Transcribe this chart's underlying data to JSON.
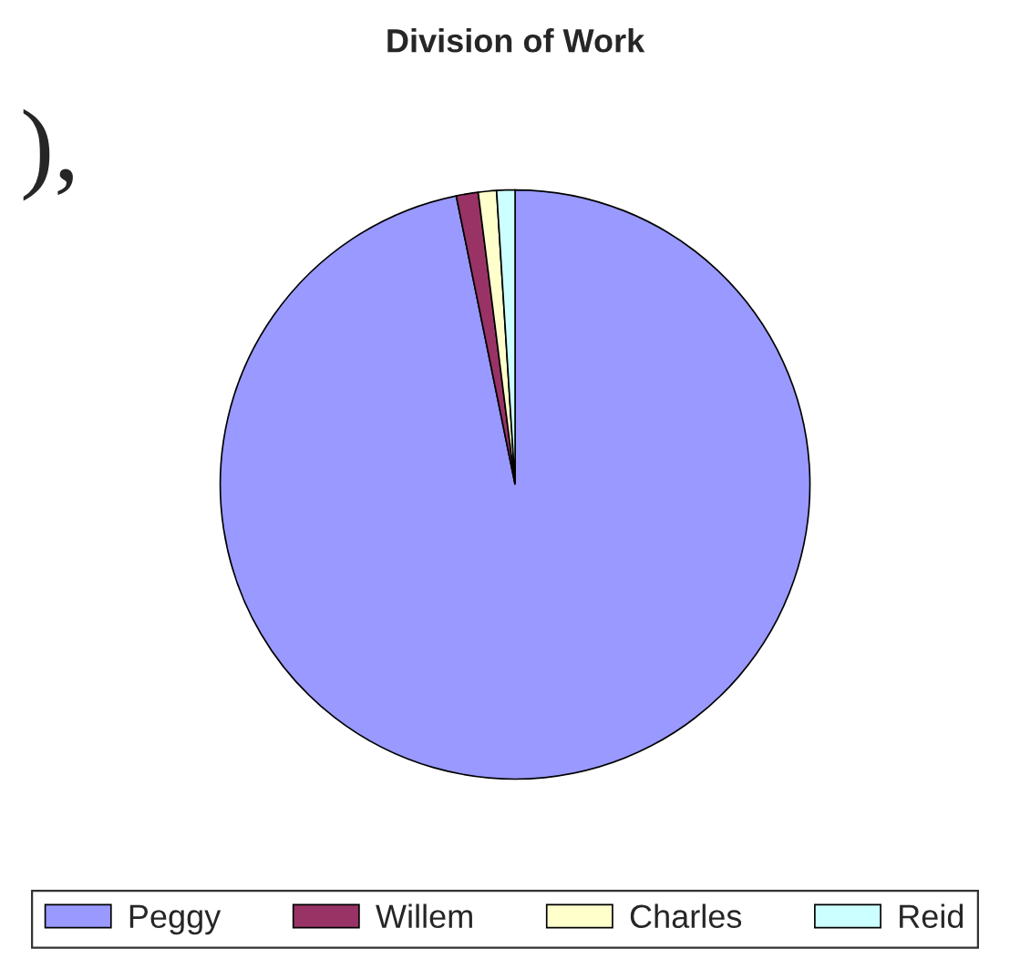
{
  "chart_data": {
    "type": "pie",
    "title": "Division of Work",
    "categories": [
      "Peggy",
      "Willem",
      "Charles",
      "Reid"
    ],
    "values": [
      96.8,
      1.2,
      1,
      1
    ],
    "colors": [
      "#9999ff",
      "#993366",
      "#ffffcc",
      "#ccffff"
    ],
    "legend": "bottom",
    "annotations": [
      "),"
    ]
  }
}
